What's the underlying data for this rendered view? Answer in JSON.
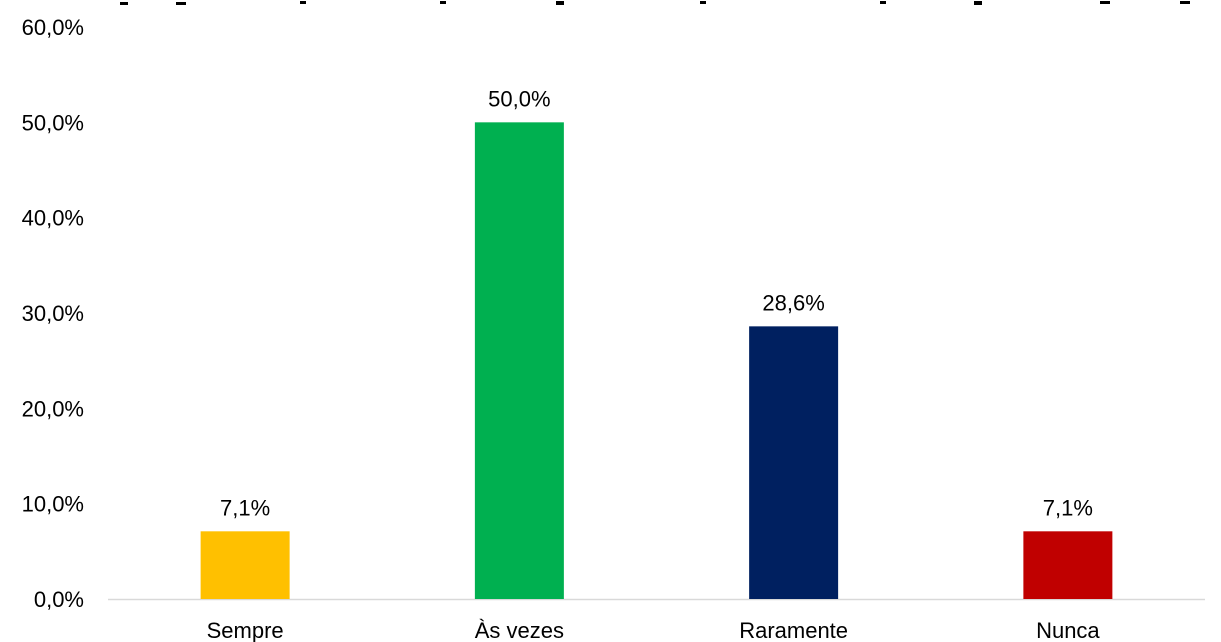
{
  "chart_data": {
    "type": "bar",
    "title": "",
    "xlabel": "",
    "ylabel": "",
    "categories": [
      "Sempre",
      "Às vezes",
      "Raramente",
      "Nunca"
    ],
    "values": [
      7.1,
      50.0,
      28.6,
      7.1
    ],
    "data_labels": [
      "7,1%",
      "50,0%",
      "28,6%",
      "7,1%"
    ],
    "colors": [
      "#FFC000",
      "#00B050",
      "#002060",
      "#C00000"
    ],
    "ylim": [
      0,
      60
    ],
    "yticks": [
      0,
      10,
      20,
      30,
      40,
      50,
      60
    ],
    "ytick_labels": [
      "0,0%",
      "10,0%",
      "20,0%",
      "30,0%",
      "40,0%",
      "50,0%",
      "60,0%"
    ],
    "grid": false,
    "legend": "none",
    "axis_color": "#D9D9D9"
  }
}
